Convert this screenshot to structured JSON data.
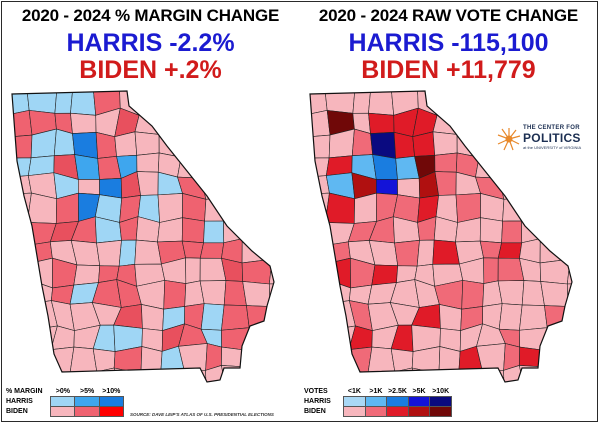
{
  "left": {
    "title": "2020 - 2024 % MARGIN CHANGE",
    "harris_line": "HARRIS -2.2%",
    "biden_line": "BIDEN +.2%",
    "legend": {
      "header": "% MARGIN",
      "bins": [
        ">0%",
        ">5%",
        ">10%"
      ],
      "rows": [
        {
          "label": "HARRIS",
          "colors": [
            "#9fd6f5",
            "#3ea6ee",
            "#1a7de0"
          ]
        },
        {
          "label": "BIDEN",
          "colors": [
            "#f7b6bd",
            "#ef6270",
            "#ff0000"
          ]
        }
      ]
    },
    "source": "SOURCE: DAVE LEIP'S ATLAS OF U.S. PRESIDENTIAL ELECTIONS"
  },
  "right": {
    "title": "2020 - 2024 RAW VOTE CHANGE",
    "harris_line": "HARRIS -115,100",
    "biden_line": "BIDEN +11,779",
    "legend": {
      "header": "VOTES",
      "bins": [
        "<1K",
        ">1K",
        ">2.5K",
        ">5K",
        ">10K"
      ],
      "rows": [
        {
          "label": "HARRIS",
          "colors": [
            "#a9d8f5",
            "#5fb8f2",
            "#1a7de0",
            "#1313d8",
            "#0a0a80"
          ]
        },
        {
          "label": "BIDEN",
          "colors": [
            "#f7b6bd",
            "#f06a78",
            "#e01b28",
            "#b01010",
            "#700808"
          ]
        }
      ]
    }
  },
  "logo": {
    "the": "THE CENTER FOR",
    "name": "POLITICS",
    "sub": "at the UNIVERSITY of VIRGINIA"
  },
  "colors": {
    "harris_blue": "#1b1bd1",
    "biden_red": "#d11b1b",
    "county_border": "#222222"
  }
}
